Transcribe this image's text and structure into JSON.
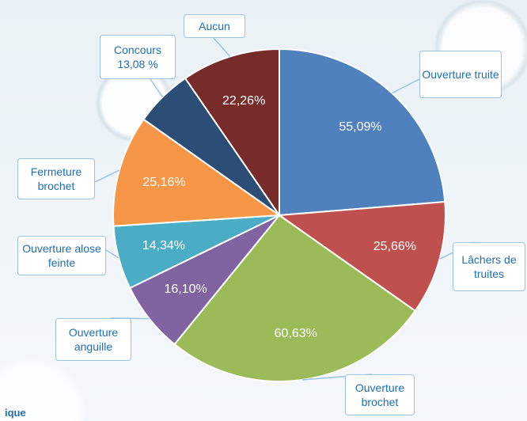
{
  "chart_data": {
    "type": "pie",
    "categories": [
      "Ouverture truite",
      "Lâchers de truites",
      "Ouverture brochet",
      "Ouverture anguille",
      "Ouverture alose feinte",
      "Fermeture brochet",
      "Concours",
      "Aucun"
    ],
    "values": [
      55.09,
      25.66,
      60.63,
      16.1,
      14.34,
      25.16,
      13.08,
      22.26
    ],
    "value_labels": [
      "55,09%",
      "25,66%",
      "60,63%",
      "16,10%",
      "14,34%",
      "25,16%",
      "13,08 %",
      "22,26%"
    ],
    "colors": [
      "#4f81bd",
      "#c0504d",
      "#9bbb59",
      "#8064a2",
      "#4bacc6",
      "#f79646",
      "#2c4d75",
      "#772c2a"
    ],
    "caption": "ique"
  }
}
